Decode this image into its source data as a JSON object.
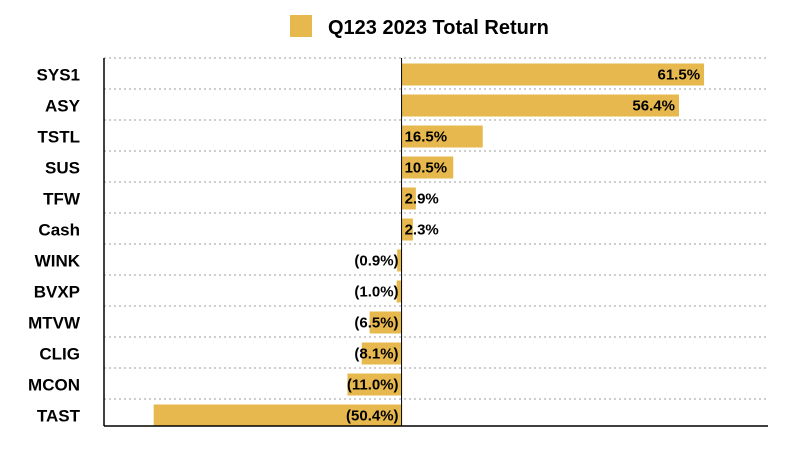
{
  "chart_data": {
    "type": "bar",
    "orientation": "horizontal",
    "legend": {
      "position": "top",
      "entries": [
        "Q123 2023 Total Return"
      ]
    },
    "categories": [
      "SYS1",
      "ASY",
      "TSTL",
      "SUS",
      "TFW",
      "Cash",
      "WINK",
      "BVXP",
      "MTVW",
      "CLIG",
      "MCON",
      "TAST"
    ],
    "series": [
      {
        "name": "Q123 2023 Total Return",
        "color": "#E6B84D",
        "values": [
          61.5,
          56.4,
          16.5,
          10.5,
          2.9,
          2.3,
          -0.9,
          -1.0,
          -6.5,
          -8.1,
          -11.0,
          -50.4
        ],
        "labels": [
          "61.5%",
          "56.4%",
          "16.5%",
          "10.5%",
          "2.9%",
          "2.3%",
          "(0.9%)",
          "(1.0%)",
          "(6.5%)",
          "(8.1%)",
          "(11.0%)",
          "(50.4%)"
        ]
      }
    ],
    "xlim": [
      -60.5,
      74.5
    ],
    "grid": "horizontal-dotted"
  }
}
